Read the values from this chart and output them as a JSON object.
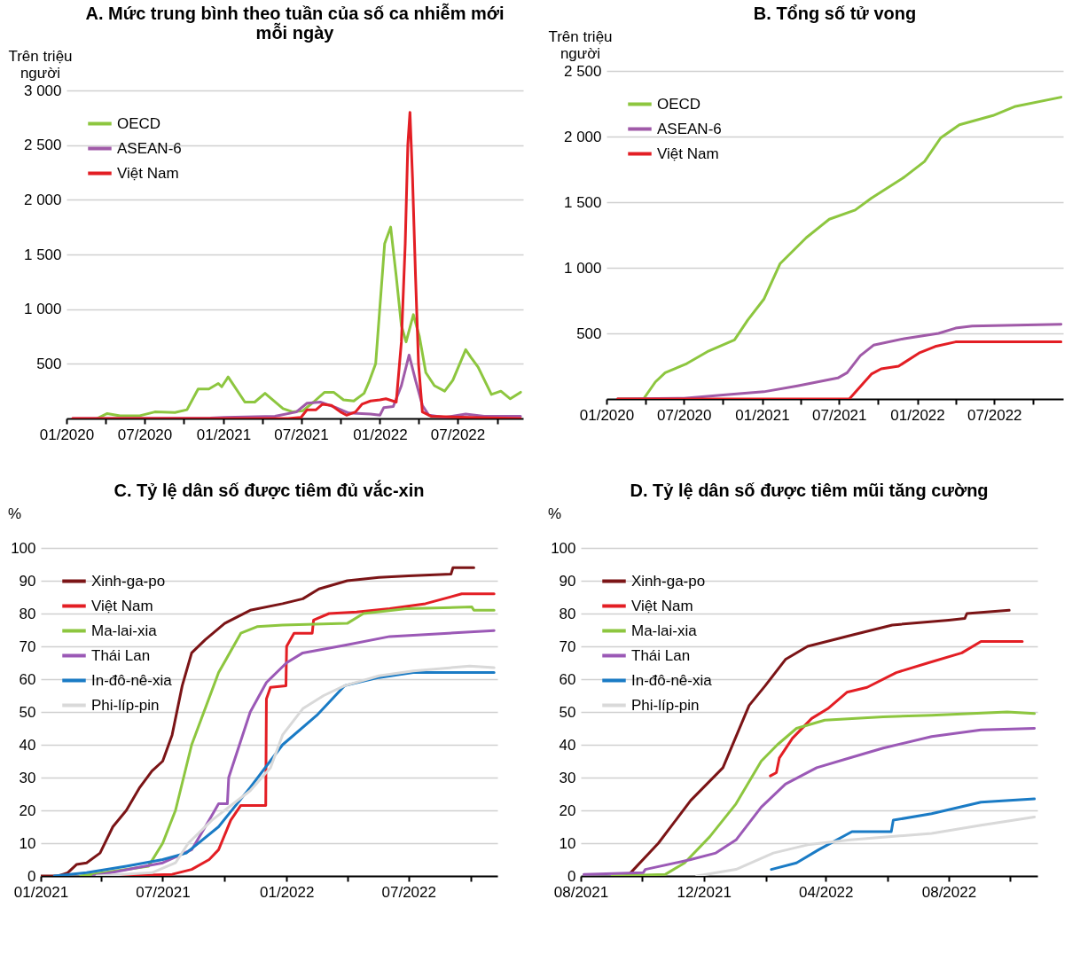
{
  "chart_data": [
    {
      "type": "line",
      "title": "A. Mức trung bình theo tuần của số ca nhiễm mới mỗi ngày",
      "ylabel": "Trên triệu người",
      "xlim": [
        "2020-01",
        "2022-12"
      ],
      "xticks": [
        {
          "value": "2020-01",
          "label": "01/2020"
        },
        {
          "value": "2020-04",
          "label": null
        },
        {
          "value": "2020-07",
          "label": "07/2020"
        },
        {
          "value": "2020-10",
          "label": null
        },
        {
          "value": "2021-01",
          "label": "01/2021"
        },
        {
          "value": "2021-04",
          "label": null
        },
        {
          "value": "2021-07",
          "label": "07/2021"
        },
        {
          "value": "2021-10",
          "label": null
        },
        {
          "value": "2022-01",
          "label": "01/2022"
        },
        {
          "value": "2022-04",
          "label": null
        },
        {
          "value": "2022-07",
          "label": "07/2022"
        },
        {
          "value": "2022-10",
          "label": null
        }
      ],
      "ylim": [
        0,
        3000
      ],
      "yticks": [
        500,
        {
          "value": 1000,
          "label": "1 000"
        },
        {
          "value": 1500,
          "label": "1 500"
        },
        {
          "value": 2000,
          "label": "2 000"
        },
        {
          "value": 2500,
          "label": "2 500"
        },
        {
          "value": 3000,
          "label": "3 000"
        }
      ],
      "grid": "y",
      "legend": "top left",
      "series": [
        {
          "name": "OECD",
          "color": "#8dc63f",
          "x": [
            "2020-03-12",
            "2020-04-05",
            "2020-05-05",
            "2020-06-20",
            "2020-07-25",
            "2020-09-10",
            "2020-10-08",
            "2020-11-03",
            "2020-11-28",
            "2020-12-20",
            "2020-12-28",
            "2021-01-12",
            "2021-02-20",
            "2021-03-15",
            "2021-04-08",
            "2021-05-20",
            "2021-06-12",
            "2021-07-05",
            "2021-07-30",
            "2021-08-25",
            "2021-09-15",
            "2021-10-08",
            "2021-11-01",
            "2021-11-25",
            "2021-12-07",
            "2021-12-22",
            "2022-01-12",
            "2022-01-26",
            "2022-02-08",
            "2022-02-20",
            "2022-03-03",
            "2022-03-20",
            "2022-04-03",
            "2022-04-18",
            "2022-05-08",
            "2022-06-01",
            "2022-06-20",
            "2022-07-20",
            "2022-08-01",
            "2022-08-18",
            "2022-09-18",
            "2022-10-10",
            "2022-11-01",
            "2022-11-25"
          ],
          "values": [
            0,
            45,
            25,
            25,
            60,
            55,
            80,
            270,
            270,
            320,
            290,
            380,
            150,
            150,
            230,
            90,
            60,
            70,
            150,
            240,
            240,
            170,
            160,
            230,
            340,
            500,
            1600,
            1750,
            1300,
            850,
            700,
            950,
            750,
            420,
            300,
            250,
            350,
            630,
            560,
            470,
            220,
            250,
            180,
            240
          ]
        },
        {
          "name": "ASEAN-6",
          "color": "#a05aa8",
          "x": [
            "2020-01-15",
            "2020-12-01",
            "2021-01-05",
            "2021-05-01",
            "2021-06-20",
            "2021-07-15",
            "2021-08-15",
            "2021-09-20",
            "2021-10-20",
            "2021-12-10",
            "2022-01-01",
            "2022-01-10",
            "2022-02-01",
            "2022-02-20",
            "2022-03-10",
            "2022-03-25",
            "2022-04-10",
            "2022-04-25",
            "2022-06-01",
            "2022-07-20",
            "2022-09-01",
            "2022-11-25"
          ],
          "values": [
            0,
            5,
            10,
            20,
            60,
            140,
            150,
            100,
            50,
            40,
            30,
            100,
            110,
            300,
            580,
            350,
            120,
            30,
            10,
            40,
            20,
            20
          ]
        },
        {
          "name": "Việt Nam",
          "color": "#e31e24",
          "x": [
            "2020-01-15",
            "2021-06-01",
            "2021-07-01",
            "2021-07-15",
            "2021-08-05",
            "2021-08-20",
            "2021-09-10",
            "2021-10-01",
            "2021-10-15",
            "2021-11-05",
            "2021-11-20",
            "2021-12-10",
            "2022-01-01",
            "2022-01-15",
            "2022-02-08",
            "2022-02-20",
            "2022-03-01",
            "2022-03-07",
            "2022-03-12",
            "2022-03-18",
            "2022-03-25",
            "2022-04-01",
            "2022-04-10",
            "2022-05-01",
            "2022-08-01",
            "2022-11-25"
          ],
          "values": [
            0,
            0,
            10,
            80,
            80,
            130,
            120,
            60,
            30,
            60,
            130,
            160,
            170,
            180,
            150,
            700,
            1600,
            2500,
            2800,
            2200,
            1300,
            500,
            60,
            20,
            10,
            0
          ]
        }
      ]
    },
    {
      "type": "line",
      "title": "B. Tổng số tử vong",
      "ylabel": "Trên triệu người",
      "xlim": [
        "2020-01",
        "2022-12-10"
      ],
      "xticks": [
        {
          "value": "2020-01",
          "label": "01/2020"
        },
        {
          "value": "2020-04",
          "label": null
        },
        {
          "value": "2020-07",
          "label": "07/2020"
        },
        {
          "value": "2020-10",
          "label": null
        },
        {
          "value": "2021-01",
          "label": "01/2021"
        },
        {
          "value": "2021-04",
          "label": null
        },
        {
          "value": "2021-07",
          "label": "07/2021"
        },
        {
          "value": "2021-10",
          "label": null
        },
        {
          "value": "2022-01",
          "label": "01/2022"
        },
        {
          "value": "2022-04",
          "label": null
        },
        {
          "value": "2022-07",
          "label": "07/2022"
        },
        {
          "value": "2022-10",
          "label": null
        }
      ],
      "ylim": [
        0,
        2500
      ],
      "yticks": [
        500,
        {
          "value": 1000,
          "label": "1 000"
        },
        {
          "value": 1500,
          "label": "1 500"
        },
        {
          "value": 2000,
          "label": "2 000"
        },
        {
          "value": 2500,
          "label": "2 500"
        }
      ],
      "grid": "y",
      "legend": "top left",
      "series": [
        {
          "name": "OECD",
          "color": "#8dc63f",
          "x": [
            "2020-01-27",
            "2020-03-28",
            "2020-04-25",
            "2020-05-18",
            "2020-07-08",
            "2020-08-25",
            "2020-10-28",
            "2020-11-28",
            "2021-01-05",
            "2021-02-12",
            "2021-04-15",
            "2021-06-08",
            "2021-08-08",
            "2021-09-15",
            "2021-12-01",
            "2022-01-18",
            "2022-02-25",
            "2022-04-10",
            "2022-06-28",
            "2022-08-20",
            "2022-12-05"
          ],
          "values": [
            0,
            0,
            130,
            200,
            270,
            360,
            450,
            600,
            760,
            1030,
            1230,
            1370,
            1440,
            1530,
            1690,
            1810,
            1990,
            2090,
            2160,
            2230,
            2300
          ]
        },
        {
          "name": "ASEAN-6",
          "color": "#a05aa8",
          "x": [
            "2020-01-27",
            "2020-07-01",
            "2020-10-01",
            "2021-01-05",
            "2021-03-25",
            "2021-06-28",
            "2021-07-20",
            "2021-08-20",
            "2021-09-20",
            "2021-12-01",
            "2022-02-20",
            "2022-04-01",
            "2022-05-10",
            "2022-07-25",
            "2022-12-05"
          ],
          "values": [
            0,
            5,
            30,
            55,
            100,
            160,
            200,
            330,
            410,
            460,
            500,
            540,
            555,
            560,
            570
          ]
        },
        {
          "name": "Việt Nam",
          "color": "#e31e24",
          "x": [
            "2020-01-27",
            "2021-07-25",
            "2021-09-15",
            "2021-10-08",
            "2021-11-18",
            "2022-01-05",
            "2022-02-12",
            "2022-04-01",
            "2022-12-05"
          ],
          "values": [
            0,
            0,
            190,
            230,
            250,
            350,
            400,
            435,
            435
          ]
        }
      ]
    },
    {
      "type": "line",
      "title": "C. Tỷ lệ dân số được tiêm đủ vắc-xin",
      "ylabel": "%",
      "xlim": [
        "2021-01",
        "2022-11-10"
      ],
      "xticks": [
        {
          "value": "2021-01",
          "label": "01/2021"
        },
        {
          "value": "2021-04",
          "label": null
        },
        {
          "value": "2021-07",
          "label": "07/2021"
        },
        {
          "value": "2021-10",
          "label": null
        },
        {
          "value": "2022-01",
          "label": "01/2022"
        },
        {
          "value": "2022-04",
          "label": null
        },
        {
          "value": "2022-07",
          "label": "07/2022"
        },
        {
          "value": "2022-10",
          "label": null
        }
      ],
      "ylim": [
        0,
        100
      ],
      "yticks": [
        0,
        10,
        20,
        30,
        40,
        50,
        60,
        70,
        80,
        90,
        100
      ],
      "grid": "y",
      "legend": "top left",
      "series": [
        {
          "name": "Xinh-ga-po",
          "color": "#7b1416",
          "x": [
            "2021-01-01",
            "2021-01-27",
            "2021-02-10",
            "2021-02-23",
            "2021-03-10",
            "2021-03-30",
            "2021-04-18",
            "2021-05-08",
            "2021-05-28",
            "2021-06-15",
            "2021-07-01",
            "2021-07-15",
            "2021-07-30",
            "2021-08-13",
            "2021-09-02",
            "2021-10-01",
            "2021-11-08",
            "2021-12-26",
            "2022-01-25",
            "2022-02-18",
            "2022-04-01",
            "2022-05-18",
            "2022-07-01",
            "2022-09-02",
            "2022-09-05",
            "2022-10-06"
          ],
          "values": [
            0,
            0,
            1,
            3.5,
            4,
            7,
            15,
            20,
            27,
            32,
            35,
            43,
            58,
            68,
            72,
            77,
            81,
            83,
            84.5,
            87.5,
            90,
            91,
            91.5,
            92,
            94,
            94
          ]
        },
        {
          "name": "Việt Nam",
          "color": "#e31e24",
          "x": [
            "2021-04-25",
            "2021-07-15",
            "2021-08-13",
            "2021-09-08",
            "2021-09-22",
            "2021-10-10",
            "2021-10-25",
            "2021-12-01",
            "2021-12-02",
            "2021-12-08",
            "2021-12-31",
            "2022-01-01",
            "2022-01-12",
            "2022-02-08",
            "2022-02-10",
            "2022-03-05",
            "2022-04-15",
            "2022-06-03",
            "2022-07-26",
            "2022-09-18",
            "2022-11-05"
          ],
          "values": [
            0,
            0.5,
            2,
            5,
            8,
            17,
            21.5,
            21.5,
            54,
            57.5,
            58,
            70,
            74,
            74,
            78,
            80,
            80.5,
            81.5,
            83,
            86,
            86
          ]
        },
        {
          "name": "Ma-lai-xia",
          "color": "#8dc63f",
          "x": [
            "2021-03-01",
            "2021-06-10",
            "2021-07-01",
            "2021-07-20",
            "2021-08-13",
            "2021-09-22",
            "2021-10-25",
            "2021-11-18",
            "2021-12-26",
            "2022-04-01",
            "2022-04-25",
            "2022-06-28",
            "2022-10-03",
            "2022-10-06",
            "2022-11-05"
          ],
          "values": [
            0,
            3,
            10,
            20,
            40,
            62,
            74,
            76,
            76.5,
            77,
            80,
            81.5,
            82,
            81,
            81
          ]
        },
        {
          "name": "Thái Lan",
          "color": "#9b59b6",
          "x": [
            "2021-03-20",
            "2021-07-01",
            "2021-08-13",
            "2021-09-08",
            "2021-09-22",
            "2021-10-05",
            "2021-10-07",
            "2021-11-08",
            "2021-12-02",
            "2022-01-01",
            "2022-01-25",
            "2022-04-01",
            "2022-06-03",
            "2022-11-05"
          ],
          "values": [
            0,
            4,
            8,
            17,
            22,
            22,
            30,
            50,
            59,
            65,
            68,
            70.5,
            73,
            74.8
          ]
        },
        {
          "name": "In-đô-nê-xia",
          "color": "#1a7bc5",
          "x": [
            "2021-01-21",
            "2021-03-10",
            "2021-05-08",
            "2021-07-01",
            "2021-08-05",
            "2021-09-22",
            "2021-11-08",
            "2021-12-26",
            "2022-02-15",
            "2022-03-28",
            "2022-05-18",
            "2022-07-08",
            "2022-11-05"
          ],
          "values": [
            0,
            1,
            3,
            5,
            7,
            15,
            27,
            40,
            49,
            58,
            60.5,
            62,
            62
          ]
        },
        {
          "name": "Phi-líp-pin",
          "color": "#d9d9d9",
          "x": [
            "2021-03-25",
            "2021-06-15",
            "2021-07-20",
            "2021-08-08",
            "2021-09-12",
            "2021-11-08",
            "2021-12-08",
            "2021-12-26",
            "2022-01-25",
            "2022-02-25",
            "2022-03-28",
            "2022-05-18",
            "2022-07-08",
            "2022-09-30",
            "2022-11-05"
          ],
          "values": [
            0,
            1,
            4,
            10,
            17,
            26,
            33,
            43,
            51,
            55,
            58,
            61,
            62.5,
            64,
            63.5
          ]
        }
      ]
    },
    {
      "type": "line",
      "title": "D. Tỷ lệ dân số được tiêm mũi tăng cường",
      "ylabel": "%",
      "xlim": [
        "2021-08",
        "2022-10-28"
      ],
      "xticks": [
        {
          "value": "2021-08",
          "label": "08/2021"
        },
        {
          "value": "2021-10",
          "label": null
        },
        {
          "value": "2021-12",
          "label": "12/2021"
        },
        {
          "value": "2022-02",
          "label": null
        },
        {
          "value": "2022-04",
          "label": "04/2022"
        },
        {
          "value": "2022-06",
          "label": null
        },
        {
          "value": "2022-08",
          "label": "08/2022"
        },
        {
          "value": "2022-10",
          "label": null
        }
      ],
      "ylim": [
        0,
        100
      ],
      "yticks": [
        0,
        10,
        20,
        30,
        40,
        50,
        60,
        70,
        80,
        90,
        100
      ],
      "grid": "y",
      "legend": "top left",
      "series": [
        {
          "name": "Xinh-ga-po",
          "color": "#7b1416",
          "x": [
            "2021-09-18",
            "2021-10-17",
            "2021-11-18",
            "2021-12-20",
            "2022-01-15",
            "2022-01-31",
            "2022-02-20",
            "2022-03-14",
            "2022-04-28",
            "2022-06-06",
            "2022-08-01",
            "2022-08-17",
            "2022-08-19",
            "2022-09-30"
          ],
          "values": [
            0.5,
            10,
            23,
            33,
            52,
            58,
            66,
            70,
            73.5,
            76.5,
            78,
            78.5,
            80,
            81
          ]
        },
        {
          "name": "Việt Nam",
          "color": "#e31e24",
          "x": [
            "2022-02-05",
            "2022-02-11",
            "2022-02-14",
            "2022-02-27",
            "2022-03-18",
            "2022-04-03",
            "2022-04-22",
            "2022-05-12",
            "2022-06-10",
            "2022-07-12",
            "2022-08-14",
            "2022-09-02",
            "2022-10-13"
          ],
          "values": [
            30.5,
            31.5,
            36,
            42,
            48,
            51,
            56,
            57.5,
            62,
            65,
            68,
            71.5,
            71.5
          ]
        },
        {
          "name": "Ma-lai-xia",
          "color": "#8dc63f",
          "x": [
            "2021-09-01",
            "2021-10-24",
            "2021-11-12",
            "2021-12-07",
            "2022-01-02",
            "2022-01-27",
            "2022-02-12",
            "2022-03-03",
            "2022-03-31",
            "2022-05-28",
            "2022-07-15",
            "2022-09-28",
            "2022-10-25"
          ],
          "values": [
            0,
            0.5,
            4,
            12,
            22,
            35,
            40,
            45,
            47.5,
            48.5,
            49,
            50,
            49.5
          ]
        },
        {
          "name": "Thái Lan",
          "color": "#9b59b6",
          "x": [
            "2021-08-04",
            "2021-10-02",
            "2021-10-04",
            "2021-11-18",
            "2021-12-13",
            "2022-01-02",
            "2022-01-27",
            "2022-02-20",
            "2022-03-23",
            "2022-04-25",
            "2022-05-28",
            "2022-07-15",
            "2022-09-02",
            "2022-10-25"
          ],
          "values": [
            0.5,
            1,
            2,
            5,
            7,
            11,
            21,
            28,
            33,
            36,
            39,
            42.5,
            44.5,
            45
          ]
        },
        {
          "name": "In-đô-nê-xia",
          "color": "#1a7bc5",
          "x": [
            "2022-02-06",
            "2022-03-03",
            "2022-03-25",
            "2022-04-27",
            "2022-06-05",
            "2022-06-07",
            "2022-07-15",
            "2022-09-02",
            "2022-10-25"
          ],
          "values": [
            2,
            4,
            8,
            13.5,
            13.5,
            17,
            19,
            22.5,
            23.5
          ]
        },
        {
          "name": "Phi-líp-pin",
          "color": "#d9d9d9",
          "x": [
            "2021-11-24",
            "2022-01-02",
            "2022-02-08",
            "2022-03-14",
            "2022-04-25",
            "2022-07-15",
            "2022-09-02",
            "2022-10-25"
          ],
          "values": [
            0,
            2,
            7,
            9.5,
            11,
            13,
            15.5,
            18
          ]
        }
      ]
    }
  ]
}
